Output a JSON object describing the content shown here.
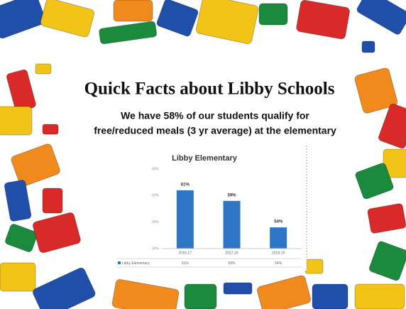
{
  "slide": {
    "title": "Quick Facts about Libby Schools",
    "subtitle": [
      "We have 58% of our students qualify for",
      "free/reduced meals (3 yr average) at the elementary"
    ]
  },
  "chart_data": {
    "type": "bar",
    "title": "Libby Elementary",
    "categories": [
      "2016-17",
      "2017-18",
      "2018-19"
    ],
    "series": [
      {
        "name": "Libby Elementary",
        "color": "#2e75c6",
        "values": [
          61,
          59,
          54
        ],
        "value_labels": [
          "61%",
          "59%",
          "54%"
        ]
      }
    ],
    "ylim": [
      50,
      65
    ],
    "yticks": [
      {
        "value": 50,
        "label": "50%"
      },
      {
        "value": 55,
        "label": "55%"
      },
      {
        "value": 60,
        "label": "60%"
      },
      {
        "value": 65,
        "label": "65%"
      }
    ],
    "grid": false,
    "data_table": true
  }
}
